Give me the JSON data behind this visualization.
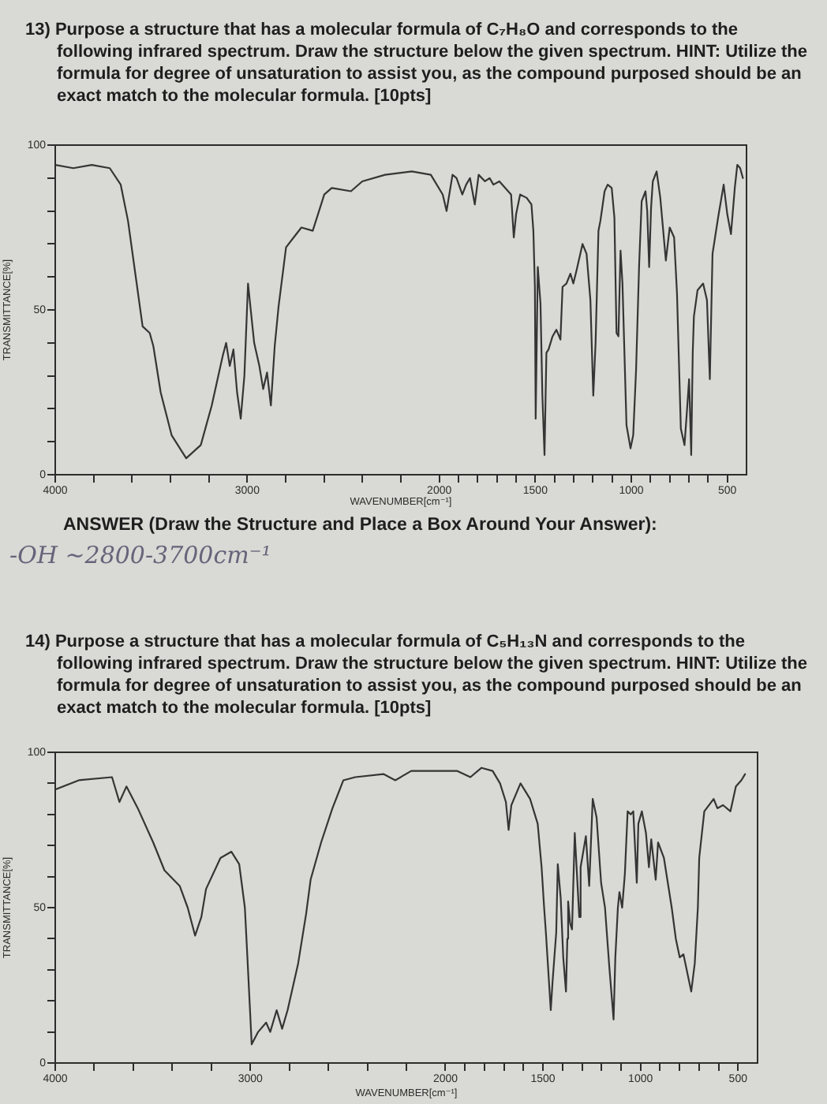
{
  "chart_data": [
    {
      "type": "line",
      "title": "13) Purpose a structure that has a molecular formula of C₇H₈O and corresponds to the following infrared spectrum. Draw the structure below the given spectrum. HINT: Utilize the formula for degree of unsaturation to assist you, as the compound purposed should be an exact match to the molecular formula. [10pts]",
      "xlabel": "WAVENUMBER[cm⁻¹]",
      "ylabel": "TRANSMITTANCE[%]",
      "x": [
        4000,
        3906,
        3810,
        3716,
        3659,
        3621,
        3583,
        3545,
        3508,
        3489,
        3451,
        3394,
        3318,
        3242,
        3185,
        3128,
        3110,
        3091,
        3072,
        3053,
        3034,
        3015,
        2996,
        2964,
        2937,
        2917,
        2897,
        2877,
        2857,
        2837,
        2798,
        2758,
        2718,
        2659,
        2599,
        2560,
        2460,
        2401,
        2282,
        2143,
        2044,
        1982,
        1962,
        1931,
        1910,
        1880,
        1860,
        1840,
        1815,
        1795,
        1762,
        1738,
        1718,
        1687,
        1657,
        1626,
        1612,
        1600,
        1579,
        1545,
        1520,
        1510,
        1502,
        1498,
        1487,
        1473,
        1463,
        1452,
        1442,
        1431,
        1410,
        1390,
        1369,
        1358,
        1338,
        1317,
        1302,
        1285,
        1254,
        1233,
        1213,
        1198,
        1186,
        1171,
        1161,
        1139,
        1123,
        1102,
        1088,
        1077,
        1067,
        1056,
        1046,
        1025,
        1004,
        990,
        975,
        959,
        946,
        926,
        917,
        907,
        897,
        888,
        868,
        849,
        820,
        800,
        777,
        762,
        742,
        723,
        713,
        699,
        688,
        680,
        674,
        655,
        626,
        606,
        591,
        577,
        548,
        519,
        500,
        481,
        461,
        448,
        433,
        419
      ],
      "series": [
        {
          "color": "#353535",
          "values": [
            94,
            93,
            94,
            93,
            88,
            77,
            61,
            45,
            43,
            39,
            25,
            12,
            5,
            9,
            21,
            36,
            40,
            33,
            38,
            25,
            17,
            30,
            58,
            40,
            33,
            26,
            31,
            21,
            39,
            51,
            69,
            72,
            75,
            74,
            85,
            87,
            86,
            89,
            91,
            92,
            91,
            85,
            80,
            91,
            90,
            85,
            88,
            90,
            82,
            91,
            89,
            90,
            88,
            89,
            87,
            85,
            72,
            79,
            85,
            84,
            82,
            74,
            57,
            17,
            63,
            52,
            24,
            6,
            37,
            38,
            42,
            44,
            41,
            57,
            58,
            61,
            58,
            62,
            70,
            67,
            53,
            24,
            40,
            74,
            77,
            86,
            88,
            87,
            78,
            43,
            42,
            68,
            58,
            15,
            8,
            12,
            32,
            64,
            83,
            86,
            80,
            63,
            81,
            89,
            92,
            84,
            65,
            75,
            72,
            55,
            14,
            9,
            17,
            29,
            6,
            37,
            48,
            56,
            58,
            53,
            29,
            67,
            78,
            88,
            79,
            73,
            87,
            94,
            93,
            90
          ]
        }
      ],
      "xlim": [
        4000,
        400
      ],
      "xticks": [
        4000,
        {
          "value": 3800,
          "label": null
        },
        {
          "value": 3600,
          "label": null
        },
        {
          "value": 3400,
          "label": null
        },
        {
          "value": 3200,
          "label": null
        },
        3000,
        {
          "value": 2800,
          "label": null
        },
        {
          "value": 2600,
          "label": null
        },
        {
          "value": 2400,
          "label": null
        },
        {
          "value": 2200,
          "label": null
        },
        2000,
        {
          "value": 1900,
          "label": null
        },
        {
          "value": 1800,
          "label": null
        },
        {
          "value": 1700,
          "label": null
        },
        {
          "value": 1600,
          "label": null
        },
        1500,
        {
          "value": 1400,
          "label": null
        },
        {
          "value": 1300,
          "label": null
        },
        {
          "value": 1200,
          "label": null
        },
        {
          "value": 1100,
          "label": null
        },
        1000,
        {
          "value": 900,
          "label": null
        },
        {
          "value": 800,
          "label": null
        },
        {
          "value": 700,
          "label": null
        },
        {
          "value": 600,
          "label": null
        },
        500
      ],
      "ylim": [
        0,
        100
      ],
      "yticks": [
        0,
        {
          "value": 10,
          "label": null
        },
        {
          "value": 20,
          "label": null
        },
        {
          "value": 30,
          "label": null
        },
        {
          "value": 40,
          "label": null
        },
        50,
        {
          "value": 60,
          "label": null
        },
        {
          "value": 70,
          "label": null
        },
        {
          "value": 80,
          "label": null
        },
        {
          "value": 90,
          "label": null
        },
        100
      ],
      "grid": false,
      "legend": false,
      "marker": "none",
      "line_style": "solid",
      "annotations": [
        "ANSWER (Draw the Structure and Place a Box Around Your Answer):",
        "-OH ~2800-3700cm⁻¹"
      ]
    },
    {
      "type": "line",
      "title": "14) Purpose a structure that has a molecular formula of C₅H₁₃N and corresponds to the following infrared spectrum. Draw the structure below the given spectrum. HINT: Utilize the formula for degree of unsaturation to assist you, as the compound purposed should be an exact match to the molecular formula. [10pts]",
      "xlabel": "WAVENUMBER[cm⁻¹]",
      "ylabel": "TRANSMITTANCE[%]",
      "x": [
        4000,
        3879,
        3709,
        3671,
        3635,
        3577,
        3498,
        3440,
        3362,
        3321,
        3283,
        3251,
        3227,
        3153,
        3097,
        3057,
        3028,
        3015,
        2993,
        2960,
        2919,
        2898,
        2865,
        2837,
        2809,
        2755,
        2714,
        2691,
        2637,
        2579,
        2523,
        2462,
        2318,
        2257,
        2175,
        2074,
        1939,
        1872,
        1815,
        1758,
        1720,
        1690,
        1676,
        1662,
        1615,
        1566,
        1527,
        1507,
        1494,
        1485,
        1460,
        1451,
        1432,
        1424,
        1409,
        1396,
        1382,
        1375,
        1371,
        1361,
        1351,
        1337,
        1314,
        1307,
        1280,
        1263,
        1245,
        1225,
        1202,
        1182,
        1160,
        1138,
        1129,
        1116,
        1108,
        1094,
        1080,
        1066,
        1050,
        1037,
        1019,
        1011,
        993,
        972,
        957,
        945,
        922,
        910,
        880,
        840,
        819,
        799,
        780,
        740,
        722,
        706,
        699,
        673,
        625,
        606,
        577,
        539,
        511,
        483,
        464
      ],
      "series": [
        {
          "color": "#353535",
          "values": [
            88,
            91,
            92,
            84,
            89,
            82,
            71,
            62,
            57,
            50,
            41,
            47,
            56,
            66,
            68,
            64,
            50,
            34,
            6,
            10,
            13,
            10,
            17,
            11,
            17,
            32,
            48,
            59,
            71,
            82,
            91,
            92,
            93,
            91,
            94,
            94,
            94,
            92,
            95,
            94,
            90,
            84,
            75,
            83,
            90,
            85,
            77,
            63,
            50,
            42,
            17,
            26,
            42,
            64,
            53,
            34,
            23,
            40,
            52,
            45,
            43,
            74,
            47,
            63,
            73,
            57,
            85,
            79,
            58,
            50,
            31,
            14,
            34,
            50,
            55,
            50,
            61,
            81,
            80,
            81,
            58,
            77,
            81,
            74,
            63,
            72,
            59,
            71,
            66,
            50,
            40,
            34,
            35,
            23,
            32,
            50,
            66,
            81,
            85,
            82,
            83,
            81,
            89,
            91,
            93
          ]
        }
      ],
      "xlim": [
        4000,
        400
      ],
      "xticks": [
        4000,
        {
          "value": 3800,
          "label": null
        },
        {
          "value": 3600,
          "label": null
        },
        {
          "value": 3400,
          "label": null
        },
        {
          "value": 3200,
          "label": null
        },
        3000,
        {
          "value": 2800,
          "label": null
        },
        {
          "value": 2600,
          "label": null
        },
        {
          "value": 2400,
          "label": null
        },
        {
          "value": 2200,
          "label": null
        },
        2000,
        {
          "value": 1900,
          "label": null
        },
        {
          "value": 1800,
          "label": null
        },
        {
          "value": 1700,
          "label": null
        },
        {
          "value": 1600,
          "label": null
        },
        1500,
        {
          "value": 1400,
          "label": null
        },
        {
          "value": 1300,
          "label": null
        },
        {
          "value": 1200,
          "label": null
        },
        {
          "value": 1100,
          "label": null
        },
        1000,
        {
          "value": 900,
          "label": null
        },
        {
          "value": 800,
          "label": null
        },
        {
          "value": 700,
          "label": null
        },
        {
          "value": 600,
          "label": null
        },
        500
      ],
      "ylim": [
        0,
        100
      ],
      "yticks": [
        0,
        {
          "value": 10,
          "label": null
        },
        {
          "value": 20,
          "label": null
        },
        {
          "value": 30,
          "label": null
        },
        {
          "value": 40,
          "label": null
        },
        50,
        {
          "value": 60,
          "label": null
        },
        {
          "value": 70,
          "label": null
        },
        {
          "value": 80,
          "label": null
        },
        {
          "value": 90,
          "label": null
        },
        100
      ],
      "grid": false,
      "legend": false,
      "marker": "none",
      "line_style": "solid"
    }
  ]
}
